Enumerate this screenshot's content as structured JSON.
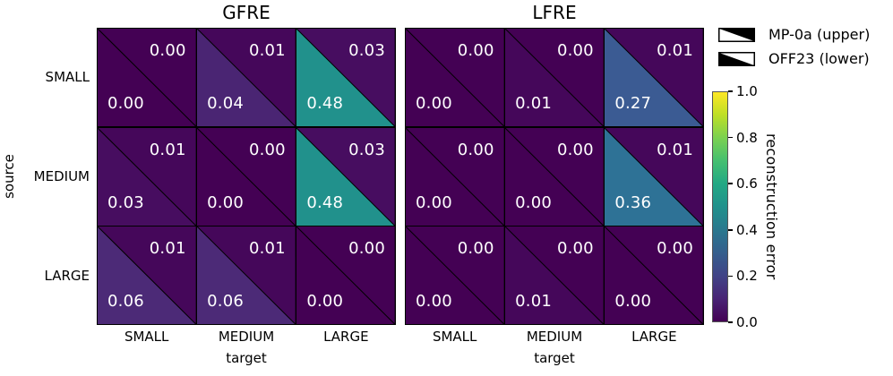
{
  "figure": {
    "ylabel": "source",
    "text_color_on_cells": "#ffffff",
    "grid_line_color": "#000000",
    "panels": [
      {
        "title": "GFRE",
        "xlabel": "target",
        "rows": [
          "SMALL",
          "MEDIUM",
          "LARGE"
        ],
        "cols": [
          "SMALL",
          "MEDIUM",
          "LARGE"
        ],
        "cells": [
          [
            {
              "u": "0.00",
              "l": "0.00",
              "uc": "#440154",
              "lc": "#440154"
            },
            {
              "u": "0.01",
              "l": "0.04",
              "uc": "#45075a",
              "lc": "#4a2573"
            },
            {
              "u": "0.03",
              "l": "0.48",
              "uc": "#470d60",
              "lc": "#21918c"
            }
          ],
          [
            {
              "u": "0.01",
              "l": "0.03",
              "uc": "#45075a",
              "lc": "#470d60"
            },
            {
              "u": "0.00",
              "l": "0.00",
              "uc": "#440154",
              "lc": "#440154"
            },
            {
              "u": "0.03",
              "l": "0.48",
              "uc": "#470d60",
              "lc": "#21918c"
            }
          ],
          [
            {
              "u": "0.01",
              "l": "0.06",
              "uc": "#45075a",
              "lc": "#4c2a77"
            },
            {
              "u": "0.01",
              "l": "0.06",
              "uc": "#45075a",
              "lc": "#4c2a77"
            },
            {
              "u": "0.00",
              "l": "0.00",
              "uc": "#440154",
              "lc": "#440154"
            }
          ]
        ]
      },
      {
        "title": "LFRE",
        "xlabel": "target",
        "rows": [
          "SMALL",
          "MEDIUM",
          "LARGE"
        ],
        "cols": [
          "SMALL",
          "MEDIUM",
          "LARGE"
        ],
        "cells": [
          [
            {
              "u": "0.00",
              "l": "0.00",
              "uc": "#440154",
              "lc": "#440154"
            },
            {
              "u": "0.00",
              "l": "0.01",
              "uc": "#440154",
              "lc": "#45075a"
            },
            {
              "u": "0.01",
              "l": "0.27",
              "uc": "#45075a",
              "lc": "#3b5b93"
            }
          ],
          [
            {
              "u": "0.00",
              "l": "0.00",
              "uc": "#440154",
              "lc": "#440154"
            },
            {
              "u": "0.00",
              "l": "0.00",
              "uc": "#440154",
              "lc": "#440154"
            },
            {
              "u": "0.01",
              "l": "0.36",
              "uc": "#45075a",
              "lc": "#2e7296"
            }
          ],
          [
            {
              "u": "0.00",
              "l": "0.00",
              "uc": "#440154",
              "lc": "#440154"
            },
            {
              "u": "0.00",
              "l": "0.01",
              "uc": "#440154",
              "lc": "#45075a"
            },
            {
              "u": "0.00",
              "l": "0.00",
              "uc": "#440154",
              "lc": "#440154"
            }
          ]
        ]
      }
    ],
    "legend": {
      "items": [
        {
          "label": "MP-0a (upper)",
          "glyph": "upper-triangle"
        },
        {
          "label": "OFF23 (lower)",
          "glyph": "lower-triangle"
        }
      ],
      "glyph_fill": "#000000"
    },
    "colorbar": {
      "label": "reconstruction error",
      "ticks": [
        "1.0",
        "0.8",
        "0.6",
        "0.4",
        "0.2",
        "0.0"
      ],
      "min": 0.0,
      "max": 1.0,
      "colormap": "viridis"
    }
  },
  "chart_data": [
    {
      "type": "heatmap",
      "title": "GFRE",
      "x": [
        "SMALL",
        "MEDIUM",
        "LARGE"
      ],
      "y": [
        "SMALL",
        "MEDIUM",
        "LARGE"
      ],
      "xlabel": "target",
      "ylabel": "source",
      "series": [
        {
          "name": "MP-0a (upper)",
          "values": [
            [
              0.0,
              0.01,
              0.03
            ],
            [
              0.01,
              0.0,
              0.03
            ],
            [
              0.01,
              0.01,
              0.0
            ]
          ]
        },
        {
          "name": "OFF23 (lower)",
          "values": [
            [
              0.0,
              0.04,
              0.48
            ],
            [
              0.03,
              0.0,
              0.48
            ],
            [
              0.06,
              0.06,
              0.0
            ]
          ]
        }
      ],
      "colormap": "viridis",
      "vmin": 0.0,
      "vmax": 1.0,
      "colorbar_label": "reconstruction error"
    },
    {
      "type": "heatmap",
      "title": "LFRE",
      "x": [
        "SMALL",
        "MEDIUM",
        "LARGE"
      ],
      "y": [
        "SMALL",
        "MEDIUM",
        "LARGE"
      ],
      "xlabel": "target",
      "ylabel": "source",
      "series": [
        {
          "name": "MP-0a (upper)",
          "values": [
            [
              0.0,
              0.0,
              0.01
            ],
            [
              0.0,
              0.0,
              0.01
            ],
            [
              0.0,
              0.0,
              0.0
            ]
          ]
        },
        {
          "name": "OFF23 (lower)",
          "values": [
            [
              0.0,
              0.01,
              0.27
            ],
            [
              0.0,
              0.0,
              0.36
            ],
            [
              0.0,
              0.01,
              0.0
            ]
          ]
        }
      ],
      "colormap": "viridis",
      "vmin": 0.0,
      "vmax": 1.0,
      "colorbar_label": "reconstruction error"
    }
  ]
}
